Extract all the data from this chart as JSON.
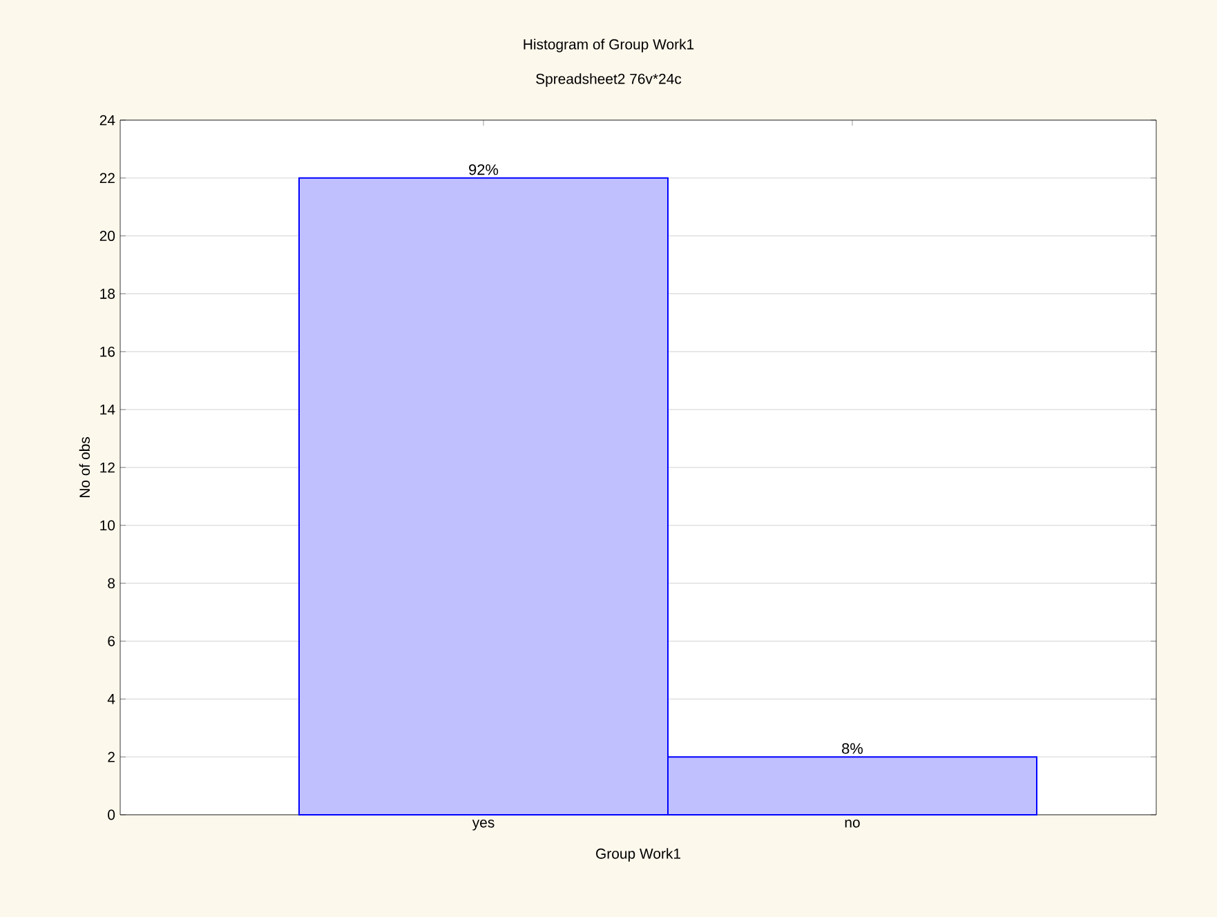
{
  "chart_data": {
    "type": "bar",
    "title": "Histogram of Group Work1",
    "subtitle": "Spreadsheet2 76v*24c",
    "xlabel": "Group Work1",
    "ylabel": "No of obs",
    "categories": [
      "yes",
      "no"
    ],
    "values": [
      22,
      2
    ],
    "color": "#c0c0ff",
    "annotations": [
      {
        "text": "92%",
        "x": "yes",
        "y": 22
      },
      {
        "text": "8%",
        "x": "no",
        "y": 2
      }
    ],
    "ylim": [
      0,
      24
    ],
    "yticks": [
      0,
      2,
      4,
      6,
      8,
      10,
      12,
      14,
      16,
      18,
      20,
      22,
      24
    ],
    "grid": "y"
  }
}
